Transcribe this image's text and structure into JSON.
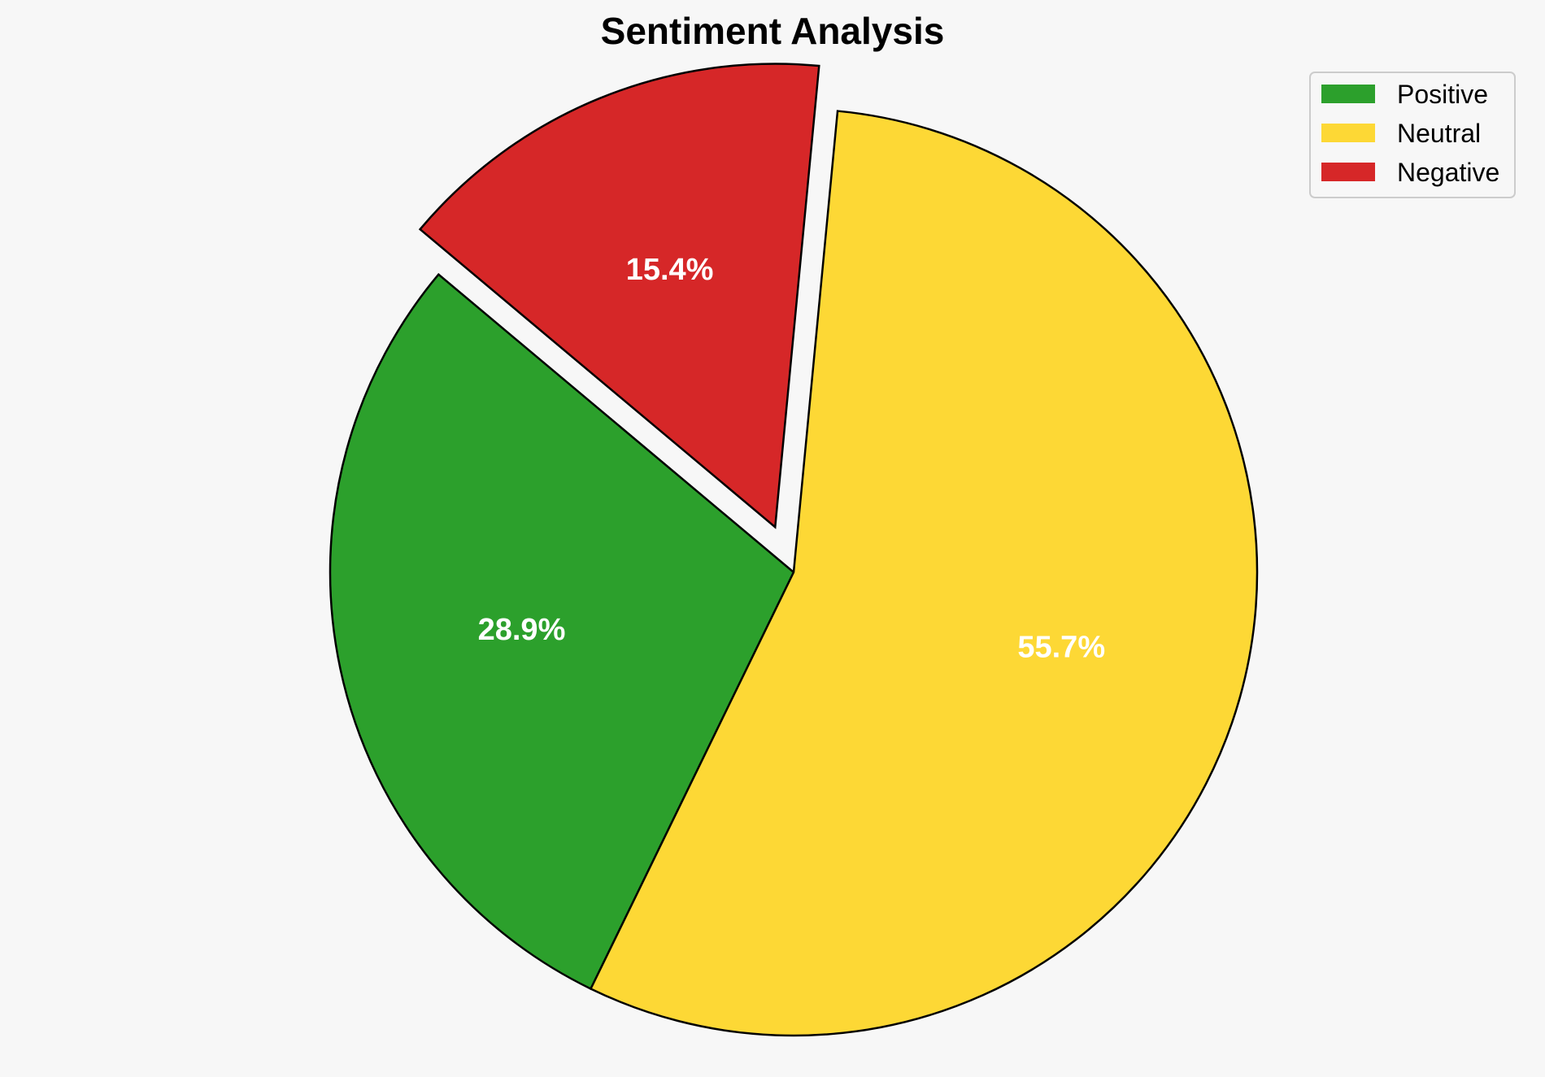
{
  "chart_data": {
    "type": "pie",
    "title": "Sentiment Analysis",
    "start_angle_deg": 140,
    "direction": "counterclockwise",
    "slices": [
      {
        "label": "Positive",
        "value": 28.9,
        "display": "28.9%",
        "color": "#2ca02c",
        "exploded": false
      },
      {
        "label": "Neutral",
        "value": 55.7,
        "display": "55.7%",
        "color": "#fdd835",
        "exploded": false
      },
      {
        "label": "Negative",
        "value": 15.4,
        "display": "15.4%",
        "color": "#d62728",
        "exploded": true
      }
    ],
    "legend": {
      "placement": "top-right",
      "entries": [
        "Positive",
        "Neutral",
        "Negative"
      ]
    }
  }
}
